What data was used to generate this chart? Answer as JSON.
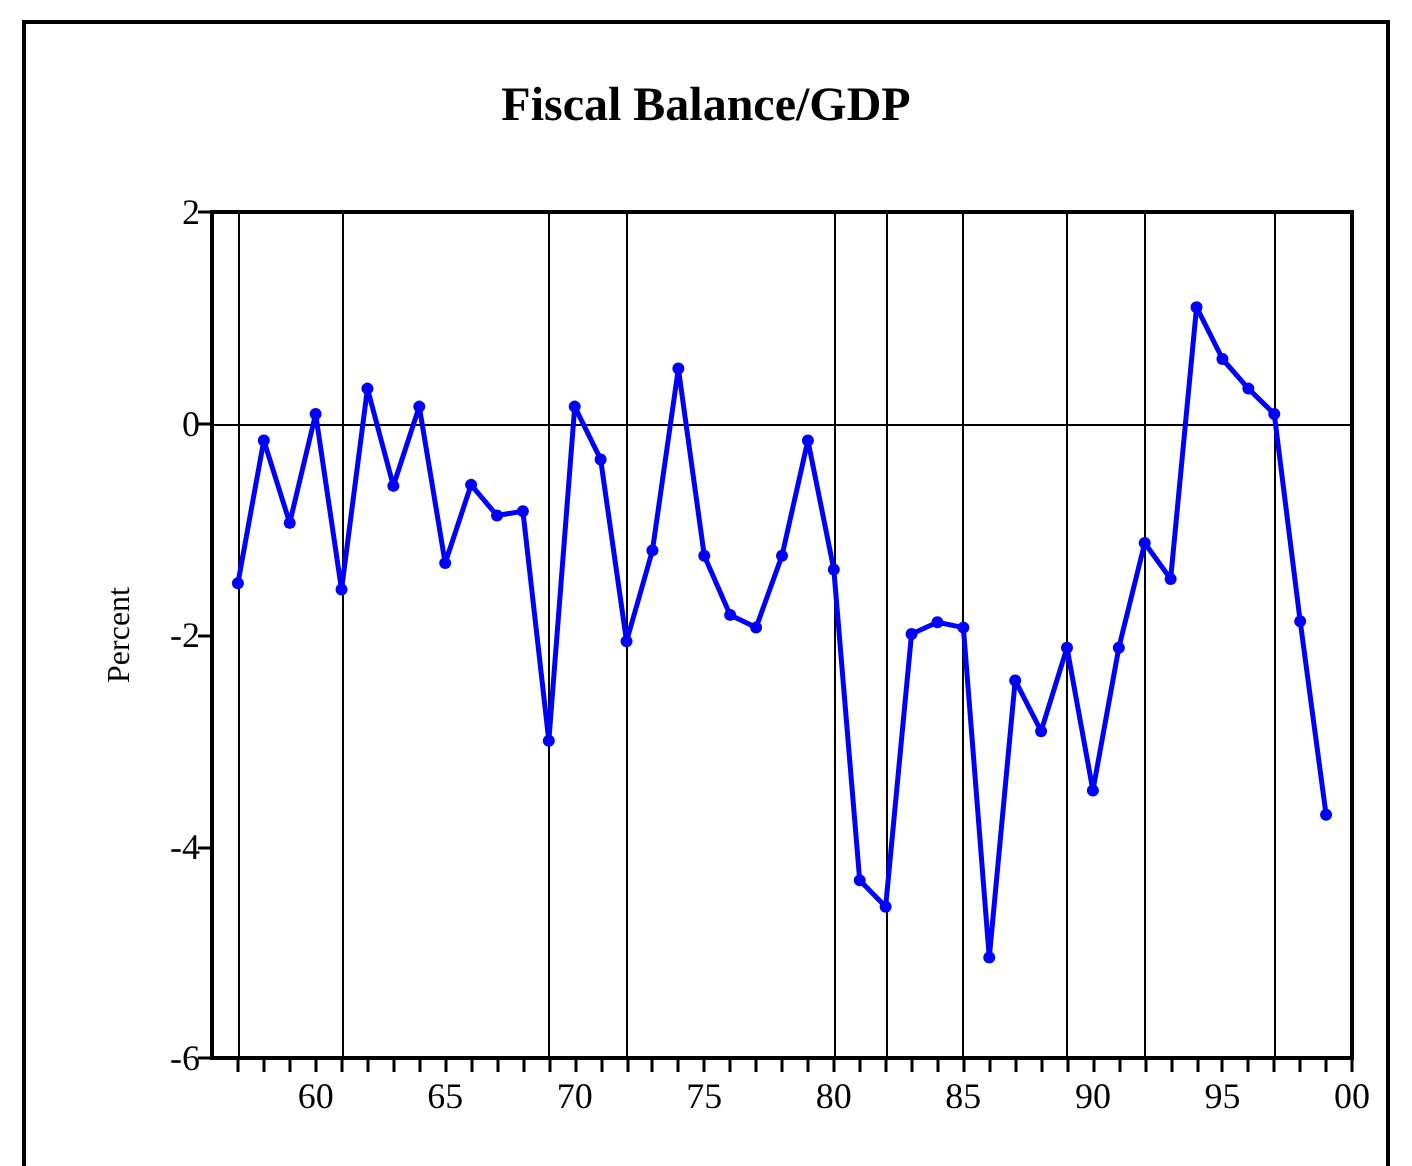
{
  "chart_data": {
    "type": "line",
    "title": "Fiscal Balance/GDP",
    "ylabel": "Percent",
    "x": [
      "1957",
      "1958",
      "1959",
      "1960",
      "1961",
      "1962",
      "1963",
      "1964",
      "1965",
      "1966",
      "1967",
      "1968",
      "1969",
      "1970",
      "1971",
      "1972",
      "1973",
      "1974",
      "1975",
      "1976",
      "1977",
      "1978",
      "1979",
      "1980",
      "1981",
      "1982",
      "1983",
      "1984",
      "1985",
      "1986",
      "1987",
      "1988",
      "1989",
      "1990",
      "1991",
      "1992",
      "1993",
      "1994",
      "1995",
      "1996",
      "1997",
      "1998",
      "1999"
    ],
    "series": [
      {
        "color": "#0000ff",
        "values": [
          -1.51,
          -0.16,
          -0.94,
          0.09,
          -1.57,
          0.33,
          -0.59,
          0.16,
          -1.32,
          -0.58,
          -0.87,
          -0.83,
          -3.0,
          0.16,
          -0.34,
          -2.06,
          -1.2,
          0.52,
          -1.25,
          -1.81,
          -1.93,
          -1.25,
          -0.16,
          -1.38,
          -4.32,
          -4.57,
          -1.99,
          -1.88,
          -1.93,
          -5.05,
          -2.43,
          -2.91,
          -2.12,
          -3.47,
          -2.12,
          -1.13,
          -1.47,
          1.1,
          0.61,
          0.33,
          0.09,
          -1.87,
          -3.7
        ]
      }
    ],
    "xlim": [
      "1956",
      "2000"
    ],
    "xticks": [
      {
        "value": "1957",
        "label": null
      },
      {
        "value": "1958",
        "label": null
      },
      {
        "value": "1959",
        "label": null
      },
      {
        "value": "1960",
        "label": "60"
      },
      {
        "value": "1961",
        "label": null
      },
      {
        "value": "1962",
        "label": null
      },
      {
        "value": "1963",
        "label": null
      },
      {
        "value": "1964",
        "label": null
      },
      {
        "value": "1965",
        "label": "65"
      },
      {
        "value": "1966",
        "label": null
      },
      {
        "value": "1967",
        "label": null
      },
      {
        "value": "1968",
        "label": null
      },
      {
        "value": "1969",
        "label": null
      },
      {
        "value": "1970",
        "label": "70"
      },
      {
        "value": "1971",
        "label": null
      },
      {
        "value": "1972",
        "label": null
      },
      {
        "value": "1973",
        "label": null
      },
      {
        "value": "1974",
        "label": null
      },
      {
        "value": "1975",
        "label": "75"
      },
      {
        "value": "1976",
        "label": null
      },
      {
        "value": "1977",
        "label": null
      },
      {
        "value": "1978",
        "label": null
      },
      {
        "value": "1979",
        "label": null
      },
      {
        "value": "1980",
        "label": "80"
      },
      {
        "value": "1981",
        "label": null
      },
      {
        "value": "1982",
        "label": null
      },
      {
        "value": "1983",
        "label": null
      },
      {
        "value": "1984",
        "label": null
      },
      {
        "value": "1985",
        "label": "85"
      },
      {
        "value": "1986",
        "label": null
      },
      {
        "value": "1987",
        "label": null
      },
      {
        "value": "1988",
        "label": null
      },
      {
        "value": "1989",
        "label": null
      },
      {
        "value": "1990",
        "label": "90"
      },
      {
        "value": "1991",
        "label": null
      },
      {
        "value": "1992",
        "label": null
      },
      {
        "value": "1993",
        "label": null
      },
      {
        "value": "1994",
        "label": null
      },
      {
        "value": "1995",
        "label": "95"
      },
      {
        "value": "1996",
        "label": null
      },
      {
        "value": "1997",
        "label": null
      },
      {
        "value": "1998",
        "label": null
      },
      {
        "value": "1999",
        "label": null
      },
      {
        "value": "2000",
        "label": "00"
      }
    ],
    "ylim": [
      -6,
      2
    ],
    "yticks": [
      -6,
      -4,
      -2,
      0,
      2
    ],
    "ref_lines": [
      {
        "axis": "y",
        "value": 0,
        "color": "#000000"
      },
      {
        "axis": "x",
        "value": "1957",
        "color": "#000000"
      },
      {
        "axis": "x",
        "value": "1961",
        "color": "#000000"
      },
      {
        "axis": "x",
        "value": "1969",
        "color": "#000000"
      },
      {
        "axis": "x",
        "value": "1972",
        "color": "#000000"
      },
      {
        "axis": "x",
        "value": "1980",
        "color": "#000000"
      },
      {
        "axis": "x",
        "value": "1982",
        "color": "#000000"
      },
      {
        "axis": "x",
        "value": "1985",
        "color": "#000000"
      },
      {
        "axis": "x",
        "value": "1989",
        "color": "#000000"
      },
      {
        "axis": "x",
        "value": "1992",
        "color": "#000000"
      },
      {
        "axis": "x",
        "value": "1997",
        "color": "#000000"
      }
    ],
    "grid": false,
    "marker": "circle",
    "line_style": "solid"
  }
}
